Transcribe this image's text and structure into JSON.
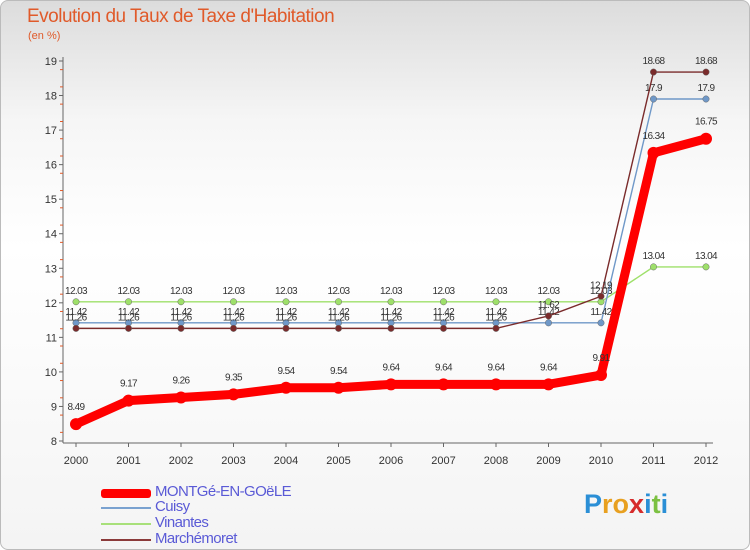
{
  "chart_data": {
    "type": "line",
    "title": "Evolution du Taux de Taxe d'Habitation",
    "subtitle": "",
    "xlabel": "",
    "ylabel": "(en %)",
    "x": [
      "2000",
      "2001",
      "2002",
      "2003",
      "2004",
      "2005",
      "2006",
      "2007",
      "2008",
      "2009",
      "2010",
      "2011",
      "2012"
    ],
    "ylim": [
      8,
      19
    ],
    "yticks": [
      8,
      9,
      10,
      11,
      12,
      13,
      14,
      15,
      16,
      17,
      18,
      19
    ],
    "grid": false,
    "legend": "bottom-left",
    "series": [
      {
        "name": "MONTGé-EN-GOëLE",
        "color": "#ff0000",
        "values": [
          8.49,
          9.17,
          9.26,
          9.35,
          9.54,
          9.54,
          9.64,
          9.64,
          9.64,
          9.64,
          9.91,
          16.34,
          16.75
        ],
        "labels": [
          "8.49",
          "9.17",
          "9.26",
          "9.35",
          "9.54",
          "9.54",
          "9.64",
          "9.64",
          "9.64",
          "9.64",
          "9.91",
          "16.34",
          "16.75"
        ]
      },
      {
        "name": "Cuisy",
        "color": "#6f98c8",
        "values": [
          11.42,
          11.42,
          11.42,
          11.42,
          11.42,
          11.42,
          11.42,
          11.42,
          11.42,
          11.42,
          11.42,
          17.9,
          17.9
        ],
        "labels": [
          "11.42",
          "11.42",
          "11.42",
          "11.42",
          "11.42",
          "11.42",
          "11.42",
          "11.42",
          "11.42",
          "11.42",
          "11.42",
          "17.9",
          "17.9"
        ]
      },
      {
        "name": "Vinantes",
        "color": "#9ee06a",
        "values": [
          12.03,
          12.03,
          12.03,
          12.03,
          12.03,
          12.03,
          12.03,
          12.03,
          12.03,
          12.03,
          12.03,
          13.04,
          13.04
        ],
        "labels": [
          "12.03",
          "12.03",
          "12.03",
          "12.03",
          "12.03",
          "12.03",
          "12.03",
          "12.03",
          "12.03",
          "12.03",
          "12.03",
          "13.04",
          "13.04"
        ]
      },
      {
        "name": "Marchémoret",
        "color": "#7a2b2b",
        "values": [
          11.26,
          11.26,
          11.26,
          11.26,
          11.26,
          11.26,
          11.26,
          11.26,
          11.26,
          11.62,
          12.19,
          18.68,
          18.68
        ],
        "labels": [
          "11.26",
          "11.26",
          "11.26",
          "11.26",
          "11.26",
          "11.26",
          "11.26",
          "11.26",
          "11.26",
          "11.62",
          "12.19",
          "18.68",
          "18.68"
        ]
      }
    ]
  }
}
